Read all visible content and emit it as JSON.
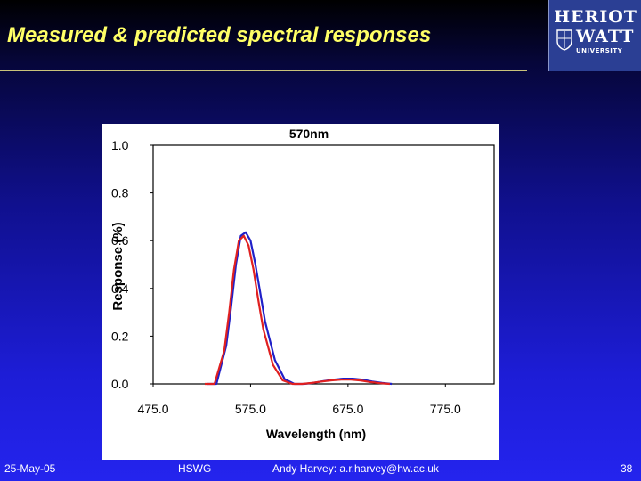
{
  "slide": {
    "title": "Measured & predicted spectral responses",
    "logo": {
      "line1": "HERIOT",
      "line2": "WATT",
      "line3": "UNIVERSITY"
    },
    "footer": {
      "date": "25-May-05",
      "group": "HSWG",
      "author": "Andy Harvey: a.r.harvey@hw.ac.uk",
      "page": "38"
    },
    "colors": {
      "title": "#ffff66",
      "logo_bg": "#2b3f94"
    }
  },
  "chart_data": {
    "type": "line",
    "title": "570nm",
    "xlabel": "Wavelength (nm)",
    "ylabel": "Response (%)",
    "xlim": [
      475,
      825
    ],
    "ylim": [
      0,
      1.0
    ],
    "xticks": [
      "475.0",
      "575.0",
      "675.0",
      "775.0"
    ],
    "yticks": [
      "0.0",
      "0.2",
      "0.4",
      "0.6",
      "0.8",
      "1.0"
    ],
    "grid": false,
    "legend": "none",
    "series": [
      {
        "color": "#2020c8",
        "x": [
          530,
          540,
          550,
          555,
          560,
          565,
          570,
          575,
          580,
          585,
          590,
          600,
          610,
          620,
          630,
          640,
          650,
          660,
          670,
          680,
          690,
          700,
          710,
          720
        ],
        "y": [
          0.0,
          0.0,
          0.16,
          0.32,
          0.5,
          0.62,
          0.635,
          0.6,
          0.5,
          0.38,
          0.26,
          0.1,
          0.02,
          0.0,
          0.0,
          0.005,
          0.012,
          0.018,
          0.022,
          0.022,
          0.018,
          0.01,
          0.004,
          0.0
        ]
      },
      {
        "color": "#e02020",
        "x": [
          528,
          538,
          548,
          553,
          558,
          563,
          568,
          573,
          578,
          583,
          588,
          598,
          608,
          618,
          628,
          638,
          648,
          658,
          668,
          678,
          688,
          698,
          708,
          718
        ],
        "y": [
          0.0,
          0.0,
          0.14,
          0.3,
          0.48,
          0.6,
          0.62,
          0.58,
          0.48,
          0.35,
          0.23,
          0.08,
          0.015,
          0.0,
          0.0,
          0.004,
          0.01,
          0.015,
          0.018,
          0.018,
          0.014,
          0.008,
          0.003,
          0.0
        ]
      }
    ]
  }
}
